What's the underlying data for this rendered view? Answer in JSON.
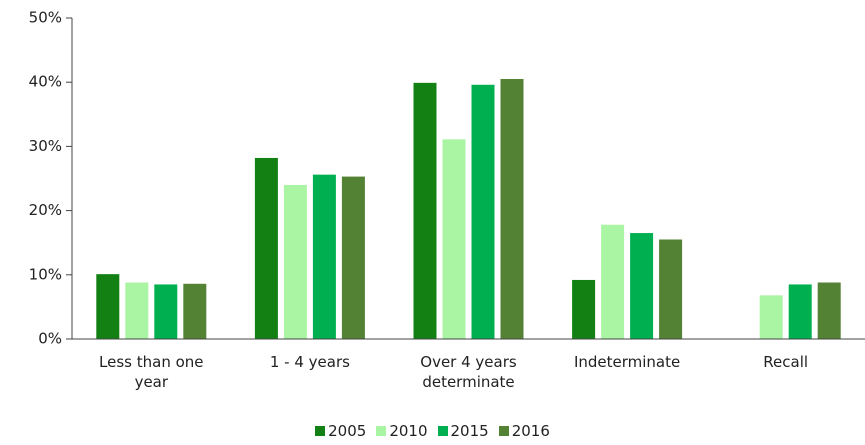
{
  "chart_data": {
    "type": "bar",
    "categories": [
      "Less than one year",
      "1 - 4 years",
      "Over 4 years determinate",
      "Indeterminate",
      "Recall"
    ],
    "series": [
      {
        "name": "2005",
        "color": "#138013",
        "values": [
          10.1,
          28.2,
          39.9,
          9.2,
          null
        ]
      },
      {
        "name": "2010",
        "color": "#aaf5a3",
        "values": [
          8.8,
          24.0,
          31.1,
          17.8,
          6.8
        ]
      },
      {
        "name": "2015",
        "color": "#00b050",
        "values": [
          8.5,
          25.6,
          39.6,
          16.5,
          8.5
        ]
      },
      {
        "name": "2016",
        "color": "#548235",
        "values": [
          8.6,
          25.3,
          40.5,
          15.5,
          8.8
        ]
      }
    ],
    "ylim": [
      0,
      50
    ],
    "yticks": [
      {
        "value": 0,
        "label": "0%"
      },
      {
        "value": 10,
        "label": "10%"
      },
      {
        "value": 20,
        "label": "20%"
      },
      {
        "value": 30,
        "label": "30%"
      },
      {
        "value": 40,
        "label": "40%"
      },
      {
        "value": 50,
        "label": "50%"
      }
    ],
    "legend": "bottom"
  }
}
